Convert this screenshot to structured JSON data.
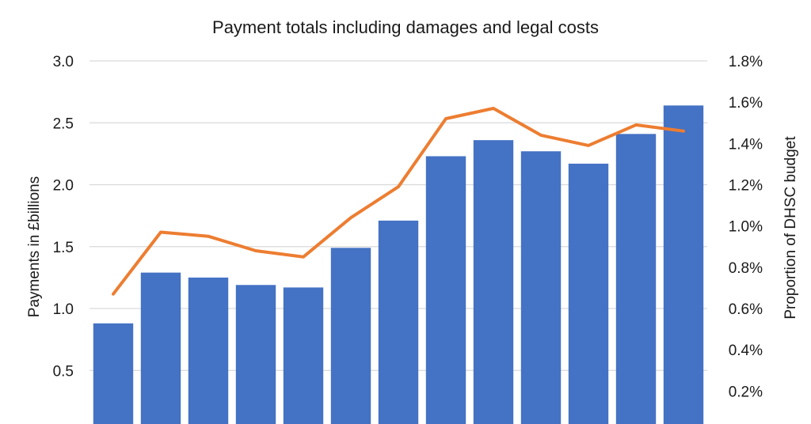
{
  "chart_data": {
    "type": "bar",
    "title": "Payment totals including damages and legal costs",
    "ylabel": "Payments in £billions",
    "y2label": "Proportion of DHSC budget",
    "ylim": [
      0,
      3.0
    ],
    "y2lim": [
      0,
      1.8
    ],
    "yticks": [
      "0.5",
      "1.0",
      "1.5",
      "2.0",
      "2.5",
      "3.0"
    ],
    "y2ticks": [
      "0.2%",
      "0.4%",
      "0.6%",
      "0.8%",
      "1.0%",
      "1.2%",
      "1.4%",
      "1.6%",
      "1.8%"
    ],
    "grid": true,
    "series": [
      {
        "type": "bar",
        "axis": "left",
        "color": "#4472C4",
        "values": [
          0.88,
          1.29,
          1.25,
          1.19,
          1.17,
          1.49,
          1.71,
          2.23,
          2.36,
          2.27,
          2.17,
          2.41,
          2.64
        ]
      },
      {
        "type": "line",
        "axis": "right",
        "color": "#ED7D31",
        "values": [
          0.67,
          0.97,
          0.95,
          0.88,
          0.85,
          1.04,
          1.19,
          1.52,
          1.57,
          1.44,
          1.39,
          1.49,
          1.46
        ]
      }
    ]
  }
}
